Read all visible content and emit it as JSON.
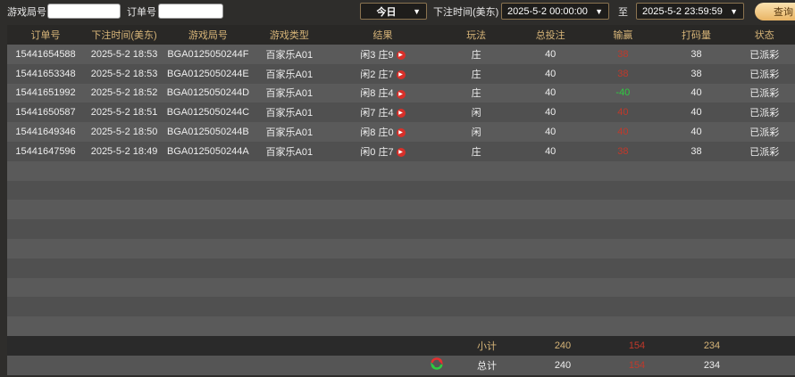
{
  "filters": {
    "round_label": "游戏局号",
    "round_value": "",
    "order_label": "订单号",
    "order_value": "",
    "period": "今日",
    "time_label": "下注时间(美东)",
    "start": "2025-5-2 00:00:00",
    "to_label": "至",
    "end": "2025-5-2 23:59:59",
    "query": "查询"
  },
  "headers": [
    "订单号",
    "下注时间(美东)",
    "游戏局号",
    "游戏类型",
    "结果",
    "玩法",
    "总投注",
    "输赢",
    "打码量",
    "状态"
  ],
  "rows": [
    {
      "order": "15441654588",
      "time": "2025-5-2 18:53",
      "round": "BGA0125050244F",
      "type": "百家乐A01",
      "result": "闲3 庄9",
      "bet": "庄",
      "total": "40",
      "win": "38",
      "win_color": "red",
      "code": "38",
      "status": "已派彩"
    },
    {
      "order": "15441653348",
      "time": "2025-5-2 18:53",
      "round": "BGA0125050244E",
      "type": "百家乐A01",
      "result": "闲2 庄7",
      "bet": "庄",
      "total": "40",
      "win": "38",
      "win_color": "red",
      "code": "38",
      "status": "已派彩"
    },
    {
      "order": "15441651992",
      "time": "2025-5-2 18:52",
      "round": "BGA0125050244D",
      "type": "百家乐A01",
      "result": "闲8 庄4",
      "bet": "庄",
      "total": "40",
      "win": "-40",
      "win_color": "green",
      "code": "40",
      "status": "已派彩"
    },
    {
      "order": "15441650587",
      "time": "2025-5-2 18:51",
      "round": "BGA0125050244C",
      "type": "百家乐A01",
      "result": "闲7 庄4",
      "bet": "闲",
      "total": "40",
      "win": "40",
      "win_color": "red",
      "code": "40",
      "status": "已派彩"
    },
    {
      "order": "15441649346",
      "time": "2025-5-2 18:50",
      "round": "BGA0125050244B",
      "type": "百家乐A01",
      "result": "闲8 庄0",
      "bet": "闲",
      "total": "40",
      "win": "40",
      "win_color": "red",
      "code": "40",
      "status": "已派彩"
    },
    {
      "order": "15441647596",
      "time": "2025-5-2 18:49",
      "round": "BGA0125050244A",
      "type": "百家乐A01",
      "result": "闲0 庄7",
      "bet": "庄",
      "total": "40",
      "win": "38",
      "win_color": "red",
      "code": "38",
      "status": "已派彩"
    }
  ],
  "subtotal": {
    "label": "小计",
    "total": "240",
    "win": "154",
    "code": "234"
  },
  "grandtotal": {
    "label": "总计",
    "total": "240",
    "win": "154",
    "code": "234",
    "icon": "refresh-icon"
  },
  "colors": {
    "header_text": "#d6b478",
    "loss": "#c0392b",
    "gain": "#2ecc40"
  }
}
